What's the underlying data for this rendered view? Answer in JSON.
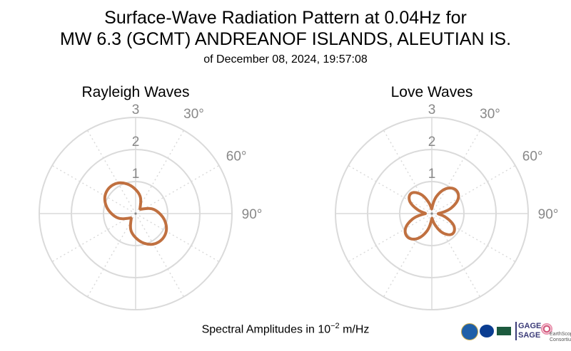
{
  "title_line1": "Surface-Wave Radiation Pattern at 0.04Hz for",
  "title_line2": "MW 6.3 (GCMT) ANDREANOF ISLANDS, ALEUTIAN IS.",
  "title_line3": "of December 08, 2024, 19:57:08",
  "footer": {
    "prefix": "Spectral Amplitudes in 10",
    "exponent": "−2",
    "suffix": " m/Hz"
  },
  "logos": {
    "gage_line1": "GAGE",
    "gage_line2": "SAGE",
    "earthscope": "EarthScope",
    "earthscope_sub": "Consortium"
  },
  "colors": {
    "pattern": "#c07040",
    "grid": "#dadada",
    "tick_text": "#888888"
  },
  "chart_data": [
    {
      "type": "polar-line",
      "title": "Rayleigh Waves",
      "radial_ticks": [
        "1",
        "2",
        "3"
      ],
      "radial_range": [
        0,
        3
      ],
      "angle_ticks": [
        "30°",
        "60°",
        "90°"
      ],
      "angle_unit": "degrees clockwise from north",
      "series": [
        {
          "azimuth": [
            0,
            15,
            30,
            45,
            60,
            75,
            90,
            105,
            120,
            135,
            150,
            165,
            180,
            195,
            210,
            225,
            240,
            255,
            270,
            285,
            300,
            315,
            330,
            345
          ],
          "amplitude": [
            0.75,
            0.55,
            0.3,
            0.2,
            0.3,
            0.55,
            0.75,
            0.95,
            1.1,
            1.15,
            1.1,
            0.95,
            0.75,
            0.55,
            0.3,
            0.2,
            0.3,
            0.55,
            0.75,
            0.95,
            1.1,
            1.15,
            1.1,
            0.95
          ]
        }
      ]
    },
    {
      "type": "polar-line",
      "title": "Love Waves",
      "radial_ticks": [
        "1",
        "2",
        "3"
      ],
      "radial_range": [
        0,
        3
      ],
      "angle_ticks": [
        "30°",
        "60°",
        "90°"
      ],
      "angle_unit": "degrees clockwise from north",
      "series": [
        {
          "azimuth": [
            0,
            15,
            30,
            45,
            60,
            75,
            90,
            105,
            120,
            135,
            150,
            165,
            180,
            195,
            210,
            225,
            240,
            255,
            270,
            285,
            300,
            315,
            330,
            345
          ],
          "amplitude": [
            0.15,
            0.55,
            0.9,
            1.05,
            0.95,
            0.6,
            0.2,
            0.45,
            0.8,
            0.9,
            0.7,
            0.35,
            0.15,
            0.55,
            0.9,
            1.05,
            0.95,
            0.6,
            0.2,
            0.45,
            0.8,
            0.9,
            0.7,
            0.35
          ]
        }
      ]
    }
  ]
}
